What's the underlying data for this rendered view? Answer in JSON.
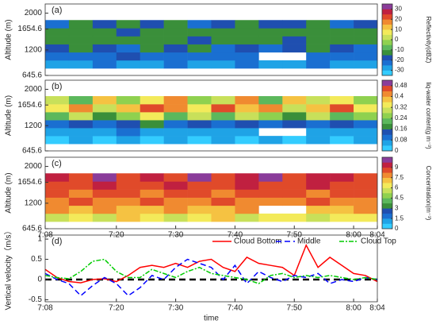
{
  "chart_data": [
    {
      "type": "heatmap",
      "panel_label": "(a)",
      "ylabel": "Altitude (m)",
      "colorbar_label": "Reflectivity(dBZ)",
      "xlim": [
        428,
        484
      ],
      "ylim": [
        645.6,
        2200
      ],
      "yticks": [
        645.6,
        1200,
        1654.6,
        2000
      ],
      "x_bins": [
        428,
        432,
        436,
        440,
        444,
        448,
        452,
        456,
        460,
        464,
        468,
        472,
        476,
        480,
        484
      ],
      "y_bins": [
        800,
        975,
        1150,
        1325,
        1500,
        1675,
        1850
      ],
      "clim": [
        -35,
        35
      ],
      "cticks": [
        -30,
        -20,
        -10,
        0,
        10,
        20,
        30
      ],
      "colors": [
        "#33ccff",
        "#1fa3e6",
        "#1a6fd1",
        "#1f4fb0",
        "#3a8f3a",
        "#5cb85c",
        "#8fd14f",
        "#c8e05a",
        "#f3ea5a",
        "#f5c242",
        "#f08a30",
        "#e04a2a",
        "#c02040",
        "#8a3c9a"
      ],
      "values": [
        [
          -28,
          -28,
          -25,
          -28,
          -28,
          -25,
          -28,
          -28,
          -25,
          -28,
          -28,
          -25,
          -28,
          -28
        ],
        [
          -22,
          -25,
          -22,
          -18,
          -22,
          -25,
          -22,
          -25,
          -22,
          null,
          null,
          -25,
          -22,
          -25
        ],
        [
          -18,
          -15,
          -18,
          -22,
          -15,
          -18,
          -15,
          -22,
          -18,
          -22,
          -18,
          -15,
          -18,
          -22
        ],
        [
          -15,
          -12,
          -15,
          -15,
          -12,
          -15,
          -18,
          -15,
          -12,
          -15,
          -18,
          -12,
          -15,
          -15
        ],
        [
          -12,
          -15,
          -12,
          -18,
          -15,
          -12,
          -15,
          -12,
          -15,
          -12,
          -15,
          -12,
          -12,
          -15
        ],
        [
          -22,
          -15,
          -18,
          -15,
          -20,
          -15,
          -22,
          -18,
          -15,
          -20,
          -18,
          -15,
          -22,
          -18
        ]
      ]
    },
    {
      "type": "heatmap",
      "panel_label": "(b)",
      "ylabel": "Altitude (m)",
      "colorbar_label": "liq-water content(g m⁻³)",
      "xlim": [
        428,
        484
      ],
      "ylim": [
        645.6,
        2200
      ],
      "yticks": [
        645.6,
        1200,
        1654.6,
        2000
      ],
      "x_bins": [
        428,
        432,
        436,
        440,
        444,
        448,
        452,
        456,
        460,
        464,
        468,
        472,
        476,
        480,
        484
      ],
      "y_bins": [
        800,
        975,
        1150,
        1325,
        1500,
        1675,
        1850
      ],
      "clim": [
        0,
        0.52
      ],
      "cticks": [
        0,
        0.08,
        0.16,
        0.24,
        0.32,
        0.4,
        0.48
      ],
      "colors": [
        "#33ccff",
        "#1fa3e6",
        "#1a6fd1",
        "#1f4fb0",
        "#3a8f3a",
        "#5cb85c",
        "#8fd14f",
        "#c8e05a",
        "#f3ea5a",
        "#f5c242",
        "#f08a30",
        "#e04a2a",
        "#8a3c9a"
      ],
      "values": [
        [
          0.02,
          0.04,
          0.02,
          0.04,
          0.02,
          0.04,
          0.02,
          0.04,
          0.02,
          0.04,
          0.02,
          0.04,
          0.02,
          0.04
        ],
        [
          0.06,
          0.04,
          0.06,
          0.08,
          0.06,
          0.04,
          0.06,
          0.04,
          0.06,
          null,
          null,
          0.06,
          0.04,
          0.06
        ],
        [
          0.1,
          0.14,
          0.1,
          0.12,
          0.18,
          0.1,
          0.14,
          0.1,
          0.12,
          0.1,
          0.14,
          0.1,
          0.12,
          0.1
        ],
        [
          0.22,
          0.3,
          0.18,
          0.26,
          0.34,
          0.22,
          0.28,
          0.2,
          0.3,
          0.24,
          0.18,
          0.28,
          0.22,
          0.26
        ],
        [
          0.34,
          0.42,
          0.3,
          0.38,
          0.46,
          0.4,
          0.34,
          0.44,
          0.36,
          0.42,
          0.3,
          0.38,
          0.44,
          0.34
        ],
        [
          0.28,
          0.2,
          0.38,
          0.26,
          0.32,
          0.42,
          0.24,
          0.3,
          0.4,
          0.22,
          0.36,
          0.28,
          0.32,
          0.24
        ]
      ]
    },
    {
      "type": "heatmap",
      "panel_label": "(c)",
      "ylabel": "Altitude (m)",
      "colorbar_label": "Concentration(m⁻³)",
      "xlim": [
        428,
        484
      ],
      "ylim": [
        645.6,
        2200
      ],
      "yticks": [
        645.6,
        1200,
        1654.6,
        2000
      ],
      "xticks": [
        {
          "value": 428,
          "label": "7:08"
        },
        {
          "value": 440,
          "label": "7:20"
        },
        {
          "value": 450,
          "label": "7:30"
        },
        {
          "value": 460,
          "label": "7:40"
        },
        {
          "value": 470,
          "label": "7:50"
        },
        {
          "value": 480,
          "label": "8:00"
        },
        {
          "value": 484,
          "label": "8:04"
        }
      ],
      "x_bins": [
        428,
        432,
        436,
        440,
        444,
        448,
        452,
        456,
        460,
        464,
        468,
        472,
        476,
        480,
        484
      ],
      "y_bins": [
        800,
        975,
        1150,
        1325,
        1500,
        1675,
        1850
      ],
      "clim": [
        0,
        10.5
      ],
      "cticks": [
        0,
        1.5,
        3,
        4.5,
        6,
        7.5,
        9
      ],
      "colors": [
        "#33ccff",
        "#1fa3e6",
        "#1a6fd1",
        "#1f4fb0",
        "#3a8f3a",
        "#5cb85c",
        "#8fd14f",
        "#c8e05a",
        "#f3ea5a",
        "#f5c242",
        "#f08a30",
        "#e04a2a",
        "#c02040",
        "#8a3c9a"
      ],
      "values": [
        [
          5.5,
          6.2,
          5.5,
          6.8,
          6,
          5.5,
          6.2,
          6.8,
          5.5,
          6,
          6.5,
          5.5,
          6.2,
          6
        ],
        [
          7.5,
          6.8,
          7.5,
          7.2,
          6.8,
          7.5,
          7,
          6.8,
          7.5,
          null,
          null,
          7.2,
          6.8,
          7.5
        ],
        [
          8.2,
          8.5,
          8,
          8.2,
          8.5,
          8.2,
          8,
          8.5,
          8.2,
          8,
          8.2,
          8.5,
          8,
          8.2
        ],
        [
          8.5,
          8.2,
          8.5,
          8.8,
          8.2,
          8.5,
          8.8,
          8.2,
          8.5,
          8.8,
          8.5,
          8.2,
          8.8,
          8.5
        ],
        [
          8.8,
          8.5,
          9.2,
          8.5,
          8.8,
          9.5,
          8.5,
          8.8,
          9.2,
          8.5,
          8.8,
          9.5,
          8.5,
          8.8
        ],
        [
          9.5,
          8.8,
          9.8,
          8.5,
          9.2,
          8.8,
          9.8,
          8.5,
          9.2,
          9.8,
          8.8,
          9.2,
          9.5,
          8.8
        ]
      ]
    },
    {
      "type": "line",
      "panel_label": "(d)",
      "ylabel": "Vertical velocity（m/s）",
      "xlabel": "time",
      "xlim": [
        428,
        484
      ],
      "ylim": [
        -0.55,
        1.1
      ],
      "yticks": [
        -0.5,
        0,
        0.5,
        1
      ],
      "hline": 0,
      "xticks": [
        {
          "value": 428,
          "label": "7:08"
        },
        {
          "value": 440,
          "label": "7:20"
        },
        {
          "value": 450,
          "label": "7:30"
        },
        {
          "value": 460,
          "label": "7:40"
        },
        {
          "value": 470,
          "label": "7:50"
        },
        {
          "value": 480,
          "label": "8:00"
        },
        {
          "value": 484,
          "label": "8:04"
        }
      ],
      "x": [
        428,
        430,
        432,
        434,
        436,
        438,
        440,
        442,
        444,
        446,
        448,
        450,
        452,
        454,
        456,
        458,
        460,
        462,
        464,
        466,
        468,
        470,
        472,
        474,
        476,
        478,
        480,
        482,
        484
      ],
      "series": [
        {
          "name": "Cloud Bottom",
          "color": "#ff0000",
          "dash": "",
          "values": [
            0.25,
            0.05,
            -0.05,
            -0.08,
            0,
            0.02,
            -0.05,
            0.1,
            0.3,
            0.35,
            0.3,
            0.4,
            0.3,
            0.45,
            0.5,
            0.3,
            0.2,
            0.55,
            0.4,
            0.35,
            0.3,
            0.1,
            0.85,
            0.3,
            0.55,
            0.35,
            0.15,
            0.1,
            -0.05
          ]
        },
        {
          "name": "Middle",
          "color": "#0000ff",
          "dash": "7 4",
          "values": [
            0.15,
            0,
            -0.1,
            -0.4,
            -0.15,
            0.05,
            -0.1,
            -0.4,
            -0.2,
            0.1,
            0,
            0.3,
            0.5,
            0.4,
            0.3,
            0,
            0.35,
            -0.1,
            0.2,
            0.05,
            -0.05,
            0.1,
            0.05,
            0.15,
            -0.1,
            0,
            -0.05,
            0.05,
            0
          ]
        },
        {
          "name": "Cloud Top",
          "color": "#00cc00",
          "dash": "6 2 2 2",
          "values": [
            0.1,
            0.05,
            0.02,
            0.2,
            0.45,
            0.5,
            0.2,
            0.05,
            0.05,
            0.25,
            0.15,
            0.05,
            0.2,
            0.3,
            0.15,
            0.1,
            0.05,
            0,
            -0.1,
            0.1,
            0.15,
            0.05,
            0.1,
            0.05,
            0.1,
            0.05,
            0,
            0.05,
            0
          ]
        }
      ]
    }
  ]
}
